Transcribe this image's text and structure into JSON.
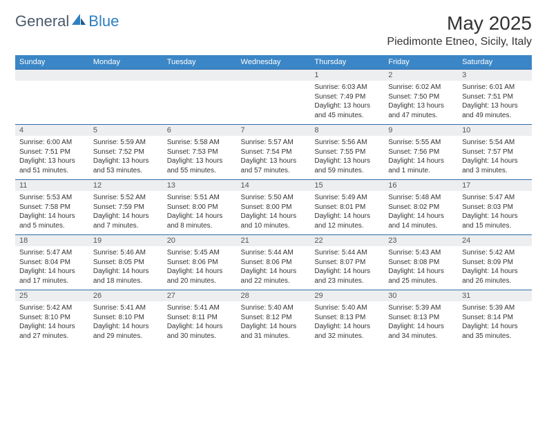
{
  "brand": {
    "part1": "General",
    "part2": "Blue"
  },
  "title": "May 2025",
  "location": "Piedimonte Etneo, Sicily, Italy",
  "header_bg": "#3b86c6",
  "divider_color": "#2d6ca8",
  "shade_bg": "#eceef0",
  "day_names": [
    "Sunday",
    "Monday",
    "Tuesday",
    "Wednesday",
    "Thursday",
    "Friday",
    "Saturday"
  ],
  "weeks": [
    [
      null,
      null,
      null,
      null,
      {
        "n": "1",
        "sr": "Sunrise: 6:03 AM",
        "ss": "Sunset: 7:49 PM",
        "dl": "Daylight: 13 hours and 45 minutes."
      },
      {
        "n": "2",
        "sr": "Sunrise: 6:02 AM",
        "ss": "Sunset: 7:50 PM",
        "dl": "Daylight: 13 hours and 47 minutes."
      },
      {
        "n": "3",
        "sr": "Sunrise: 6:01 AM",
        "ss": "Sunset: 7:51 PM",
        "dl": "Daylight: 13 hours and 49 minutes."
      }
    ],
    [
      {
        "n": "4",
        "sr": "Sunrise: 6:00 AM",
        "ss": "Sunset: 7:51 PM",
        "dl": "Daylight: 13 hours and 51 minutes."
      },
      {
        "n": "5",
        "sr": "Sunrise: 5:59 AM",
        "ss": "Sunset: 7:52 PM",
        "dl": "Daylight: 13 hours and 53 minutes."
      },
      {
        "n": "6",
        "sr": "Sunrise: 5:58 AM",
        "ss": "Sunset: 7:53 PM",
        "dl": "Daylight: 13 hours and 55 minutes."
      },
      {
        "n": "7",
        "sr": "Sunrise: 5:57 AM",
        "ss": "Sunset: 7:54 PM",
        "dl": "Daylight: 13 hours and 57 minutes."
      },
      {
        "n": "8",
        "sr": "Sunrise: 5:56 AM",
        "ss": "Sunset: 7:55 PM",
        "dl": "Daylight: 13 hours and 59 minutes."
      },
      {
        "n": "9",
        "sr": "Sunrise: 5:55 AM",
        "ss": "Sunset: 7:56 PM",
        "dl": "Daylight: 14 hours and 1 minute."
      },
      {
        "n": "10",
        "sr": "Sunrise: 5:54 AM",
        "ss": "Sunset: 7:57 PM",
        "dl": "Daylight: 14 hours and 3 minutes."
      }
    ],
    [
      {
        "n": "11",
        "sr": "Sunrise: 5:53 AM",
        "ss": "Sunset: 7:58 PM",
        "dl": "Daylight: 14 hours and 5 minutes."
      },
      {
        "n": "12",
        "sr": "Sunrise: 5:52 AM",
        "ss": "Sunset: 7:59 PM",
        "dl": "Daylight: 14 hours and 7 minutes."
      },
      {
        "n": "13",
        "sr": "Sunrise: 5:51 AM",
        "ss": "Sunset: 8:00 PM",
        "dl": "Daylight: 14 hours and 8 minutes."
      },
      {
        "n": "14",
        "sr": "Sunrise: 5:50 AM",
        "ss": "Sunset: 8:00 PM",
        "dl": "Daylight: 14 hours and 10 minutes."
      },
      {
        "n": "15",
        "sr": "Sunrise: 5:49 AM",
        "ss": "Sunset: 8:01 PM",
        "dl": "Daylight: 14 hours and 12 minutes."
      },
      {
        "n": "16",
        "sr": "Sunrise: 5:48 AM",
        "ss": "Sunset: 8:02 PM",
        "dl": "Daylight: 14 hours and 14 minutes."
      },
      {
        "n": "17",
        "sr": "Sunrise: 5:47 AM",
        "ss": "Sunset: 8:03 PM",
        "dl": "Daylight: 14 hours and 15 minutes."
      }
    ],
    [
      {
        "n": "18",
        "sr": "Sunrise: 5:47 AM",
        "ss": "Sunset: 8:04 PM",
        "dl": "Daylight: 14 hours and 17 minutes."
      },
      {
        "n": "19",
        "sr": "Sunrise: 5:46 AM",
        "ss": "Sunset: 8:05 PM",
        "dl": "Daylight: 14 hours and 18 minutes."
      },
      {
        "n": "20",
        "sr": "Sunrise: 5:45 AM",
        "ss": "Sunset: 8:06 PM",
        "dl": "Daylight: 14 hours and 20 minutes."
      },
      {
        "n": "21",
        "sr": "Sunrise: 5:44 AM",
        "ss": "Sunset: 8:06 PM",
        "dl": "Daylight: 14 hours and 22 minutes."
      },
      {
        "n": "22",
        "sr": "Sunrise: 5:44 AM",
        "ss": "Sunset: 8:07 PM",
        "dl": "Daylight: 14 hours and 23 minutes."
      },
      {
        "n": "23",
        "sr": "Sunrise: 5:43 AM",
        "ss": "Sunset: 8:08 PM",
        "dl": "Daylight: 14 hours and 25 minutes."
      },
      {
        "n": "24",
        "sr": "Sunrise: 5:42 AM",
        "ss": "Sunset: 8:09 PM",
        "dl": "Daylight: 14 hours and 26 minutes."
      }
    ],
    [
      {
        "n": "25",
        "sr": "Sunrise: 5:42 AM",
        "ss": "Sunset: 8:10 PM",
        "dl": "Daylight: 14 hours and 27 minutes."
      },
      {
        "n": "26",
        "sr": "Sunrise: 5:41 AM",
        "ss": "Sunset: 8:10 PM",
        "dl": "Daylight: 14 hours and 29 minutes."
      },
      {
        "n": "27",
        "sr": "Sunrise: 5:41 AM",
        "ss": "Sunset: 8:11 PM",
        "dl": "Daylight: 14 hours and 30 minutes."
      },
      {
        "n": "28",
        "sr": "Sunrise: 5:40 AM",
        "ss": "Sunset: 8:12 PM",
        "dl": "Daylight: 14 hours and 31 minutes."
      },
      {
        "n": "29",
        "sr": "Sunrise: 5:40 AM",
        "ss": "Sunset: 8:13 PM",
        "dl": "Daylight: 14 hours and 32 minutes."
      },
      {
        "n": "30",
        "sr": "Sunrise: 5:39 AM",
        "ss": "Sunset: 8:13 PM",
        "dl": "Daylight: 14 hours and 34 minutes."
      },
      {
        "n": "31",
        "sr": "Sunrise: 5:39 AM",
        "ss": "Sunset: 8:14 PM",
        "dl": "Daylight: 14 hours and 35 minutes."
      }
    ]
  ]
}
